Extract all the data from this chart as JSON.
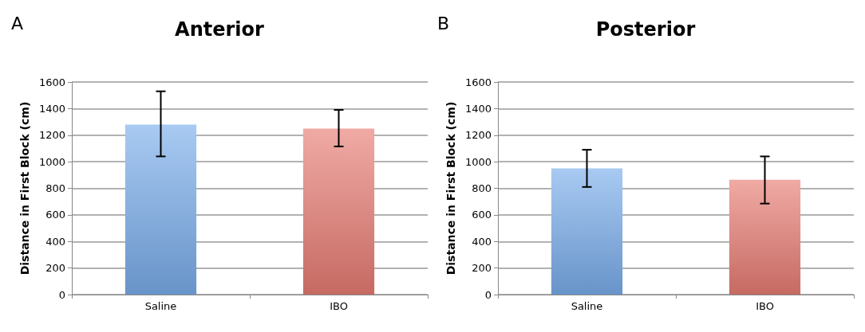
{
  "chart_data": [
    {
      "type": "bar",
      "title": "Anterior",
      "ylabel": "Distance in First Block (cm)",
      "annotations": [
        "A"
      ],
      "categories": [
        "Saline",
        "IBO"
      ],
      "values": [
        1280,
        1250
      ],
      "colors": [
        "#7aaeec",
        "#e97d74"
      ],
      "errors": [
        [
          1040,
          1530
        ],
        [
          1115,
          1390
        ]
      ],
      "ylim": [
        0,
        1600
      ],
      "yticks": [
        0,
        200,
        400,
        600,
        800,
        1000,
        1200,
        1400,
        1600
      ],
      "grid": "y"
    },
    {
      "type": "bar",
      "title": "Posterior",
      "ylabel": "Distance in First Block (cm)",
      "annotations": [
        "B"
      ],
      "categories": [
        "Saline",
        "IBO"
      ],
      "values": [
        950,
        865
      ],
      "colors": [
        "#7aaeec",
        "#e97d74"
      ],
      "errors": [
        [
          810,
          1090
        ],
        [
          685,
          1040
        ]
      ],
      "ylim": [
        0,
        1600
      ],
      "yticks": [
        0,
        200,
        400,
        600,
        800,
        1000,
        1200,
        1400,
        1600
      ],
      "grid": "y"
    }
  ]
}
